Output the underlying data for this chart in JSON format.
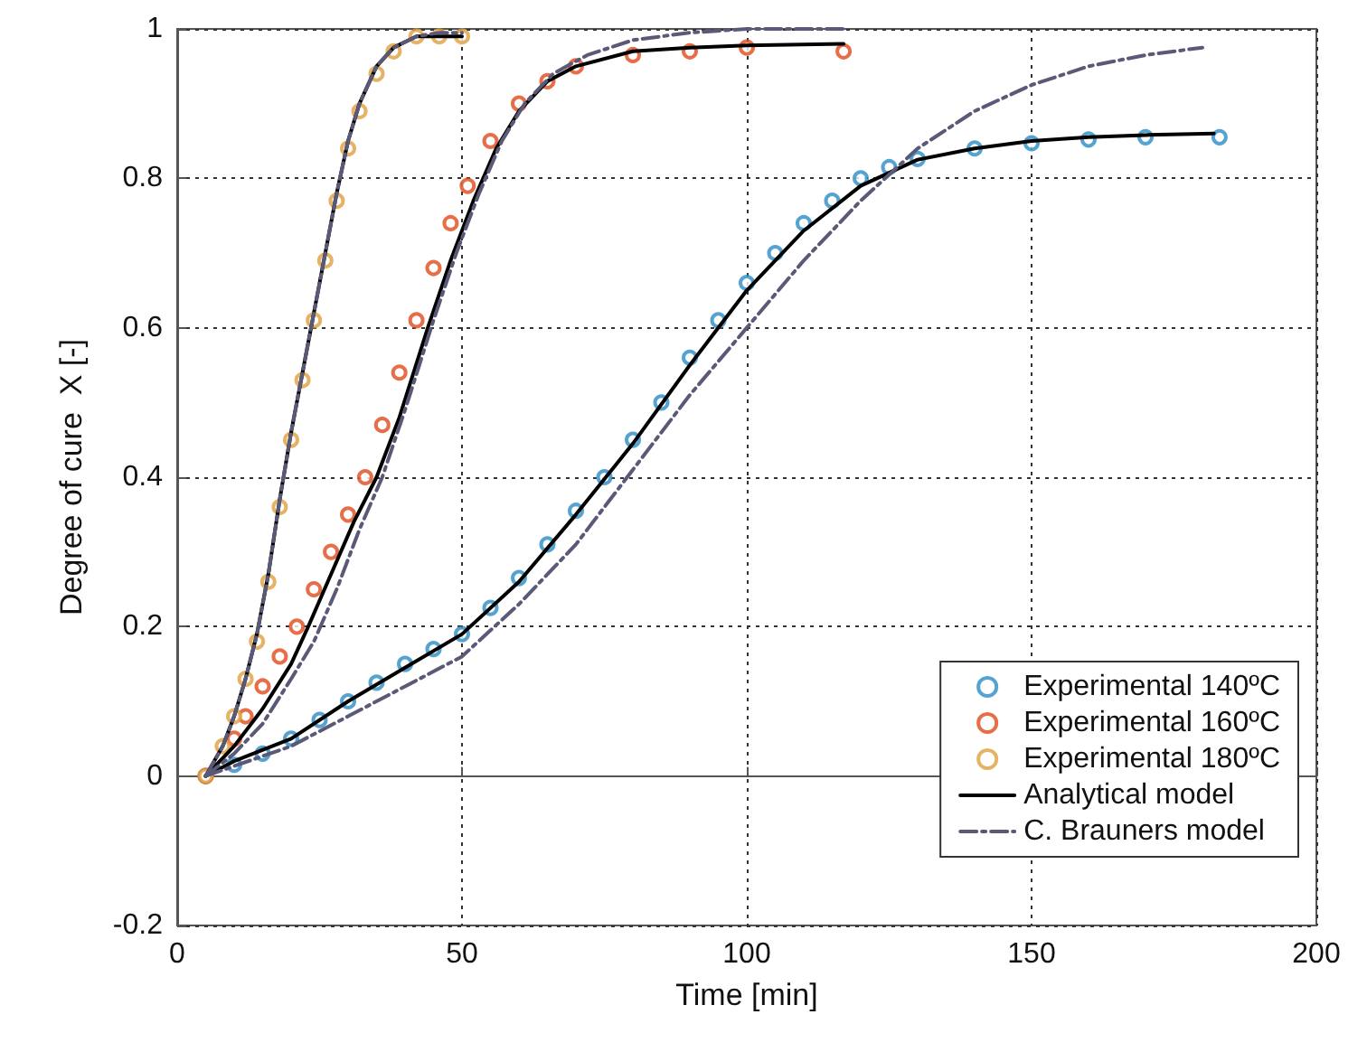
{
  "chart_data": {
    "type": "line",
    "xlabel": "Time [min]",
    "ylabel": "Degree of cure  X [-]",
    "xlim": [
      0,
      200
    ],
    "xticks": [
      0,
      50,
      100,
      150,
      200
    ],
    "ylim": [
      -0.2,
      1
    ],
    "yticks": [
      -0.2,
      0,
      0.2,
      0.4,
      0.6,
      0.8,
      1
    ],
    "grid": true,
    "legend": "bottom right",
    "series": [
      {
        "name": "Experimental 140ºC",
        "type": "scatter",
        "marker": "circle",
        "color": "#2a8cc4",
        "x": [
          5,
          10,
          15,
          20,
          25,
          30,
          35,
          40,
          45,
          50,
          55,
          60,
          65,
          70,
          75,
          80,
          85,
          90,
          95,
          100,
          105,
          110,
          115,
          120,
          125,
          130,
          140,
          150,
          160,
          170,
          183
        ],
        "values": [
          0,
          0.015,
          0.03,
          0.05,
          0.075,
          0.1,
          0.125,
          0.15,
          0.17,
          0.19,
          0.225,
          0.265,
          0.31,
          0.355,
          0.4,
          0.45,
          0.5,
          0.56,
          0.61,
          0.66,
          0.7,
          0.74,
          0.77,
          0.8,
          0.815,
          0.826,
          0.84,
          0.847,
          0.852,
          0.855,
          0.855
        ]
      },
      {
        "name": "Experimental 160ºC",
        "type": "scatter",
        "marker": "circle",
        "color": "#e04a1a",
        "x": [
          5,
          10,
          12,
          15,
          18,
          21,
          24,
          27,
          30,
          33,
          36,
          39,
          42,
          45,
          48,
          51,
          55,
          60,
          65,
          70,
          80,
          90,
          100,
          117
        ],
        "values": [
          0,
          0.05,
          0.08,
          0.12,
          0.16,
          0.2,
          0.25,
          0.3,
          0.35,
          0.4,
          0.47,
          0.54,
          0.61,
          0.68,
          0.74,
          0.79,
          0.85,
          0.9,
          0.93,
          0.95,
          0.965,
          0.97,
          0.975,
          0.97
        ]
      },
      {
        "name": "Experimental 180ºC",
        "type": "scatter",
        "marker": "circle",
        "color": "#e0a040",
        "x": [
          5,
          8,
          10,
          12,
          14,
          16,
          18,
          20,
          22,
          24,
          26,
          28,
          30,
          32,
          35,
          38,
          42,
          46,
          50
        ],
        "values": [
          0,
          0.04,
          0.08,
          0.13,
          0.18,
          0.26,
          0.36,
          0.45,
          0.53,
          0.61,
          0.69,
          0.77,
          0.84,
          0.89,
          0.94,
          0.97,
          0.99,
          0.99,
          0.99
        ]
      },
      {
        "name": "Analytical model",
        "line_style": "solid",
        "color": "#000000",
        "x": [
          5,
          10,
          20,
          30,
          40,
          50,
          60,
          70,
          80,
          90,
          100,
          110,
          120,
          130,
          140,
          150,
          160,
          170,
          182
        ],
        "values": [
          0,
          0.02,
          0.05,
          0.1,
          0.145,
          0.19,
          0.26,
          0.35,
          0.445,
          0.55,
          0.65,
          0.73,
          0.79,
          0.825,
          0.84,
          0.85,
          0.855,
          0.858,
          0.86
        ]
      },
      {
        "line_style": "solid",
        "color": "#000000",
        "x": [
          5,
          10,
          15,
          20,
          23,
          27,
          31,
          35,
          39,
          44,
          48,
          52,
          56,
          60,
          65,
          70,
          80,
          90,
          100,
          117
        ],
        "values": [
          0,
          0.04,
          0.09,
          0.15,
          0.2,
          0.27,
          0.34,
          0.4,
          0.48,
          0.6,
          0.69,
          0.77,
          0.84,
          0.89,
          0.93,
          0.95,
          0.97,
          0.975,
          0.978,
          0.98
        ]
      },
      {
        "line_style": "solid",
        "color": "#000000",
        "x": [
          5,
          8,
          10,
          12,
          14,
          16,
          18,
          20,
          22,
          24,
          26,
          28,
          30,
          32,
          35,
          38,
          42,
          46,
          50
        ],
        "values": [
          0,
          0.04,
          0.08,
          0.13,
          0.19,
          0.27,
          0.37,
          0.46,
          0.54,
          0.62,
          0.7,
          0.78,
          0.85,
          0.9,
          0.95,
          0.975,
          0.99,
          0.99,
          0.99
        ]
      },
      {
        "name": "C. Brauners model",
        "line_style": "dashed",
        "color": "#5a5a78",
        "x": [
          5,
          20,
          30,
          40,
          50,
          60,
          70,
          80,
          90,
          100,
          110,
          120,
          130,
          140,
          150,
          160,
          170,
          180
        ],
        "values": [
          0,
          0.04,
          0.08,
          0.12,
          0.16,
          0.23,
          0.31,
          0.41,
          0.51,
          0.6,
          0.69,
          0.77,
          0.84,
          0.89,
          0.925,
          0.95,
          0.965,
          0.975
        ]
      },
      {
        "line_style": "dashed",
        "color": "#5a5a78",
        "x": [
          5,
          10,
          15,
          20,
          24,
          28,
          32,
          36,
          40,
          45,
          49,
          53,
          57,
          61,
          66,
          72,
          80,
          90,
          100,
          117
        ],
        "values": [
          0,
          0.03,
          0.07,
          0.13,
          0.18,
          0.25,
          0.33,
          0.4,
          0.49,
          0.61,
          0.7,
          0.78,
          0.85,
          0.9,
          0.94,
          0.965,
          0.985,
          0.995,
          1,
          1
        ]
      },
      {
        "line_style": "dashed",
        "color": "#5a5a78",
        "x": [
          5,
          8,
          10,
          12,
          14,
          16,
          18,
          20,
          22,
          24,
          26,
          28,
          30,
          32,
          35,
          38,
          42,
          46,
          50
        ],
        "values": [
          0,
          0.04,
          0.08,
          0.13,
          0.19,
          0.27,
          0.37,
          0.46,
          0.54,
          0.62,
          0.7,
          0.78,
          0.85,
          0.9,
          0.95,
          0.975,
          0.99,
          0.995,
          0.995
        ]
      }
    ]
  }
}
